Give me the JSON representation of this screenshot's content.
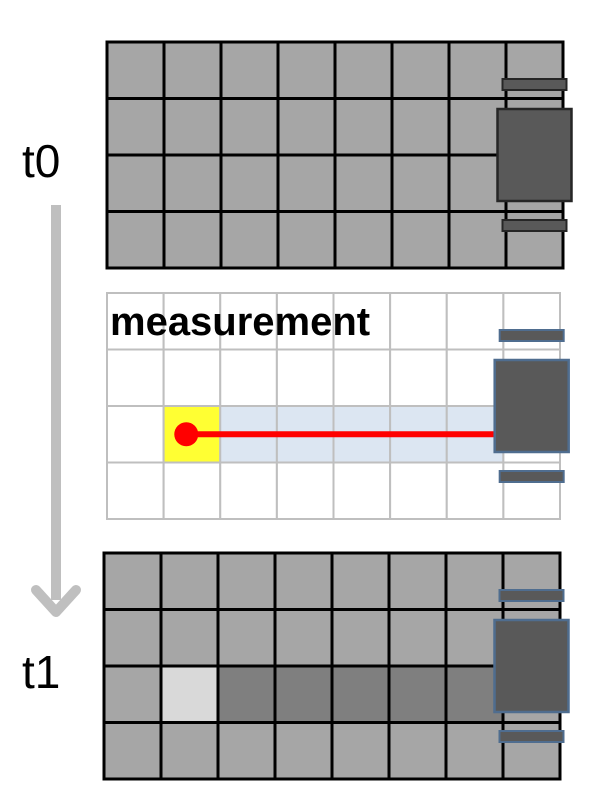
{
  "labels": {
    "t0": "t0",
    "t1": "t1",
    "measurement": "measurement"
  },
  "panels": [
    {
      "id": "t0",
      "rows": 4,
      "cols": 8,
      "cell_fill": "#a6a6a6",
      "grid_line": "#000000",
      "occupied_cells": [],
      "free_cells": [],
      "beam_cells": [],
      "sensor": false,
      "robot_col": 7,
      "robot_row_span": [
        1,
        3
      ]
    },
    {
      "id": "measurement",
      "rows": 4,
      "cols": 8,
      "cell_fill": "#ffffff",
      "grid_line": "#bfbfbf",
      "occupied_cells": [],
      "hit_cell": {
        "row": 2,
        "col": 1
      },
      "beam_cells": [
        [
          2,
          2
        ],
        [
          2,
          3
        ],
        [
          2,
          4
        ],
        [
          2,
          5
        ],
        [
          2,
          6
        ]
      ],
      "sensor": true,
      "robot_col": 7,
      "robot_row_span": [
        1,
        3
      ]
    },
    {
      "id": "t1",
      "rows": 4,
      "cols": 8,
      "cell_fill": "#a6a6a6",
      "grid_line": "#000000",
      "free_cells": [
        [
          2,
          2
        ],
        [
          2,
          3
        ],
        [
          2,
          4
        ],
        [
          2,
          5
        ],
        [
          2,
          6
        ]
      ],
      "occupied_cells": [
        [
          2,
          1
        ]
      ],
      "sensor": false,
      "robot_col": 7,
      "robot_row_span": [
        1,
        3
      ]
    }
  ],
  "colors": {
    "robot_body": "#595959",
    "robot_outline_dark": "#262626",
    "robot_outline_blue": "#4f6d8f",
    "hit_cell": "#ffff33",
    "beam_cell": "#dce6f2",
    "ray": "#ff0000",
    "free_cell": "#7f7f7f",
    "occupied_cell": "#d9d9d9",
    "time_arrow": "#bfbfbf"
  }
}
